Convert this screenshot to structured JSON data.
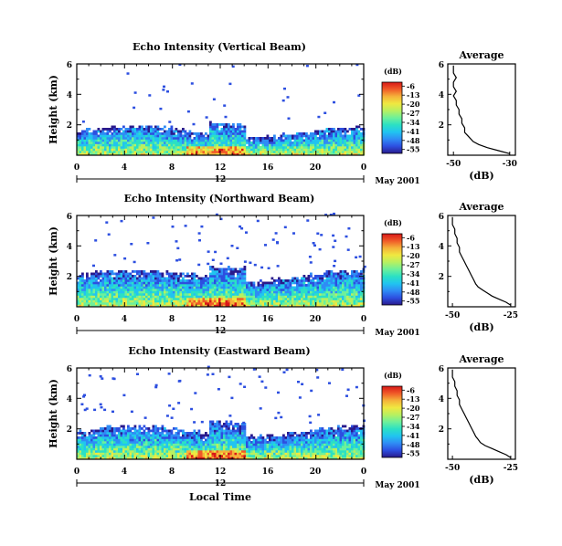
{
  "colors": {
    "colormap": [
      "#2a1a8c",
      "#2d4fe0",
      "#2f8cf5",
      "#21c4f0",
      "#2be0c4",
      "#6ef09a",
      "#b8f060",
      "#f0e840",
      "#f5b23a",
      "#f05a28",
      "#d81818"
    ],
    "axis": "#000000",
    "profile_line": "#000000"
  },
  "colorbar": {
    "title": "(dB)",
    "ticks": [
      "-6",
      "-13",
      "-20",
      "-27",
      "-34",
      "-41",
      "-48",
      "-55"
    ],
    "range": [
      -58,
      -3
    ]
  },
  "x_axis": {
    "ticks": [
      "0",
      "4",
      "8",
      "12",
      "16",
      "20",
      "0"
    ],
    "day_label": "12",
    "date_label": "May 2001",
    "xlabel": "Local Time"
  },
  "y_axis": {
    "ylabel": "Height (km)",
    "ticks": [
      "6",
      "4",
      "2"
    ]
  },
  "profile_axis": {
    "title": "Average",
    "yticks": [
      "6",
      "4",
      "2"
    ],
    "xlabel": "(dB)"
  },
  "chart_data": [
    {
      "type": "heatmap",
      "title": "Echo Intensity (Vertical Beam)",
      "xlabel": "",
      "ylabel": "Height (km)",
      "x_range_hours": [
        0,
        24
      ],
      "ylim_km": [
        0,
        6
      ],
      "colorbar_range_db": [
        -58,
        -3
      ],
      "layer_top_km": 1.5,
      "profile": {
        "title": "Average",
        "xlabel": "(dB)",
        "xticks": [
          "-50",
          "-30"
        ],
        "xlim": [
          -52,
          -28
        ],
        "heights_km": [
          0.1,
          0.3,
          0.5,
          0.7,
          0.9,
          1.1,
          1.3,
          1.5,
          1.8,
          2.1,
          2.4,
          2.7,
          3.0,
          3.3,
          3.6,
          3.9,
          4.2,
          4.5,
          4.8,
          5.1,
          5.4,
          5.7,
          5.9
        ],
        "values_db": [
          -30,
          -34,
          -38,
          -41,
          -43,
          -44,
          -45,
          -46,
          -46,
          -47,
          -47,
          -48,
          -48,
          -49,
          -49,
          -50,
          -49,
          -50,
          -50,
          -49,
          -50,
          -50,
          -50
        ]
      }
    },
    {
      "type": "heatmap",
      "title": "Echo Intensity (Northward Beam)",
      "xlabel": "",
      "ylabel": "Height (km)",
      "x_range_hours": [
        0,
        24
      ],
      "ylim_km": [
        0,
        6
      ],
      "colorbar_range_db": [
        -58,
        -3
      ],
      "layer_top_km": 2.0,
      "profile": {
        "title": "Average",
        "xlabel": "(dB)",
        "xticks": [
          "-50",
          "-25"
        ],
        "xlim": [
          -52,
          -23
        ],
        "heights_km": [
          0.1,
          0.3,
          0.5,
          0.7,
          0.9,
          1.1,
          1.3,
          1.5,
          1.8,
          2.1,
          2.4,
          2.7,
          3.0,
          3.3,
          3.6,
          3.9,
          4.2,
          4.5,
          4.8,
          5.1,
          5.4,
          5.7,
          5.9
        ],
        "values_db": [
          -25,
          -27,
          -30,
          -33,
          -35,
          -37,
          -39,
          -40,
          -41,
          -42,
          -43,
          -44,
          -45,
          -46,
          -47,
          -47,
          -48,
          -48,
          -49,
          -49,
          -50,
          -50,
          -50
        ]
      }
    },
    {
      "type": "heatmap",
      "title": "Echo Intensity (Eastward Beam)",
      "xlabel": "Local Time",
      "ylabel": "Height (km)",
      "x_range_hours": [
        0,
        24
      ],
      "ylim_km": [
        0,
        6
      ],
      "colorbar_range_db": [
        -58,
        -3
      ],
      "layer_top_km": 1.8,
      "profile": {
        "title": "Average",
        "xlabel": "(dB)",
        "xticks": [
          "-50",
          "-25"
        ],
        "xlim": [
          -52,
          -23
        ],
        "heights_km": [
          0.1,
          0.3,
          0.5,
          0.7,
          0.9,
          1.1,
          1.3,
          1.5,
          1.8,
          2.1,
          2.4,
          2.7,
          3.0,
          3.3,
          3.6,
          3.9,
          4.2,
          4.5,
          4.8,
          5.1,
          5.4,
          5.7,
          5.9
        ],
        "values_db": [
          -25,
          -27,
          -30,
          -33,
          -36,
          -38,
          -39,
          -40,
          -41,
          -42,
          -43,
          -44,
          -45,
          -46,
          -47,
          -47,
          -48,
          -48,
          -49,
          -49,
          -50,
          -50,
          -50
        ]
      }
    }
  ]
}
